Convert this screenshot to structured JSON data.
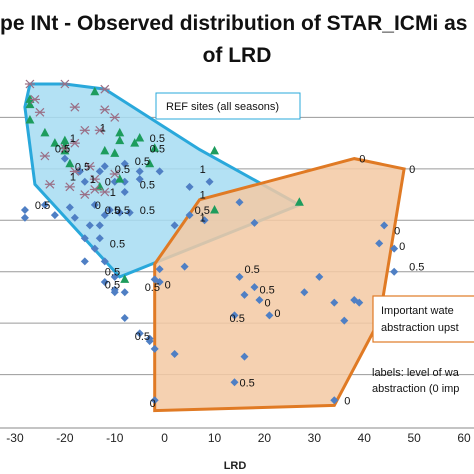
{
  "chart_data": {
    "type": "scatter",
    "title_line1": "pe INt - Observed distribution of STAR_ICMi as a functic",
    "title_line2": "of LRD",
    "xlabel": "LRD",
    "xlim": [
      -33,
      62
    ],
    "ylim": [
      0.0,
      1.4
    ],
    "x_ticks": [
      -30,
      -20,
      -10,
      0,
      10,
      20,
      30,
      40,
      50,
      60
    ],
    "grid_y": [
      0.2,
      0.4,
      0.6,
      0.8,
      1.0,
      1.2
    ],
    "grid": true,
    "colors": {
      "ref_fill": "#a6dcf2",
      "ref_stroke": "#29a8db",
      "abs_fill": "#f3c9a3",
      "abs_stroke": "#e07a24",
      "diamond": "#4f7fc4",
      "triangle": "#1d9c5d",
      "star": "#9a6f86"
    },
    "ref_region": {
      "label": "REF sites (all seasons)",
      "polygon": [
        [
          -27,
          1.33
        ],
        [
          -20,
          1.33
        ],
        [
          -12,
          1.31
        ],
        [
          7,
          1.075
        ],
        [
          27,
          0.86
        ],
        [
          -9,
          0.58
        ],
        [
          -26,
          0.94
        ],
        [
          -28,
          1.24
        ]
      ]
    },
    "abstraction_region": {
      "label_lines": [
        "Important wate",
        "abstraction upst"
      ],
      "polygon": [
        [
          -2,
          0.63
        ],
        [
          7,
          0.88
        ],
        [
          38,
          1.04
        ],
        [
          48,
          1.0
        ],
        [
          43,
          0.41
        ],
        [
          34,
          0.08
        ],
        [
          -2,
          0.06
        ]
      ]
    },
    "series": [
      {
        "marker": "diamond",
        "points": [
          [
            -28,
            0.84
          ],
          [
            -28,
            0.81
          ],
          [
            -22,
            0.82
          ],
          [
            -14,
            0.86
          ],
          [
            -11,
            0.84
          ],
          [
            -9,
            0.83
          ],
          [
            -13,
            0.99
          ],
          [
            -10,
            0.95
          ],
          [
            -13,
            0.78
          ],
          [
            -14,
            0.69
          ],
          [
            -12,
            0.64
          ],
          [
            -12,
            0.56
          ],
          [
            -16,
            0.64
          ],
          [
            -10,
            0.58
          ],
          [
            -10,
            0.52
          ],
          [
            -5,
            0.36
          ],
          [
            -10,
            0.53
          ],
          [
            -19,
            0.85
          ],
          [
            -5,
            0.96
          ],
          [
            -8,
            0.95
          ],
          [
            -8,
            0.91
          ],
          [
            -3,
            0.34
          ],
          [
            -2,
            0.3
          ],
          [
            -1,
            0.56
          ],
          [
            -1,
            0.61
          ],
          [
            4,
            0.62
          ],
          [
            -20,
            1.04
          ],
          [
            -17,
            0.99
          ],
          [
            -16,
            0.95
          ],
          [
            -12,
            1.01
          ],
          [
            -8,
            1.02
          ],
          [
            -5,
            0.99
          ],
          [
            -1,
            0.99
          ],
          [
            5,
            0.93
          ],
          [
            5,
            0.82
          ],
          [
            2,
            0.78
          ],
          [
            15,
            0.58
          ],
          [
            18,
            0.54
          ],
          [
            16,
            0.51
          ],
          [
            19,
            0.49
          ],
          [
            28,
            0.52
          ],
          [
            31,
            0.58
          ],
          [
            38,
            0.49
          ],
          [
            39,
            0.48
          ],
          [
            44,
            0.78
          ],
          [
            43,
            0.71
          ],
          [
            46,
            0.69
          ],
          [
            46,
            0.6
          ],
          [
            -16,
            0.73
          ],
          [
            -13,
            0.73
          ],
          [
            -12,
            0.82
          ],
          [
            -8,
            0.42
          ],
          [
            -2,
            0.1
          ],
          [
            14,
            0.17
          ],
          [
            34,
            0.1
          ],
          [
            36,
            0.41
          ],
          [
            34,
            0.48
          ],
          [
            8,
            0.8
          ],
          [
            18,
            0.79
          ],
          [
            21,
            0.43
          ],
          [
            14,
            0.43
          ],
          [
            -18,
            0.81
          ],
          [
            -15,
            0.78
          ],
          [
            -7,
            0.83
          ],
          [
            -3,
            0.33
          ],
          [
            -24,
            0.86
          ],
          [
            15,
            0.87
          ],
          [
            9,
            0.95
          ],
          [
            -8,
            0.52
          ],
          [
            16,
            0.27
          ],
          [
            2,
            0.28
          ],
          [
            -2,
            0.57
          ]
        ]
      },
      {
        "marker": "triangle",
        "points": [
          [
            -27,
            1.25
          ],
          [
            -27,
            1.27
          ],
          [
            -27,
            1.19
          ],
          [
            -24,
            1.14
          ],
          [
            -22,
            1.1
          ],
          [
            -20,
            1.07
          ],
          [
            -20,
            1.11
          ],
          [
            -20,
            1.09
          ],
          [
            -9,
            1.11
          ],
          [
            -10,
            1.06
          ],
          [
            -3,
            1.02
          ],
          [
            -6,
            1.1
          ],
          [
            -5,
            1.12
          ],
          [
            -2,
            1.08
          ],
          [
            -19,
            1.02
          ],
          [
            -12,
            1.07
          ],
          [
            -9,
            1.14
          ],
          [
            10,
            1.07
          ],
          [
            -13,
            0.93
          ],
          [
            -9,
            0.96
          ],
          [
            27,
            0.87
          ],
          [
            -8,
            0.57
          ],
          [
            10,
            0.84
          ],
          [
            -14,
            1.3
          ]
        ]
      },
      {
        "marker": "star",
        "points": [
          [
            -27,
            1.33
          ],
          [
            -20,
            1.33
          ],
          [
            -12,
            1.31
          ],
          [
            -26,
            1.27
          ],
          [
            -25,
            1.22
          ],
          [
            -18,
            1.24
          ],
          [
            -12,
            1.23
          ],
          [
            -10,
            1.2
          ],
          [
            -13,
            1.15
          ],
          [
            -16,
            1.15
          ],
          [
            -18,
            1.1
          ],
          [
            -20,
            1.08
          ],
          [
            -24,
            1.05
          ],
          [
            -15,
            1.01
          ],
          [
            -18,
            0.99
          ],
          [
            -14,
            0.96
          ],
          [
            -14,
            0.92
          ],
          [
            -23,
            0.94
          ],
          [
            -19,
            0.93
          ],
          [
            -12,
            0.91
          ],
          [
            -10,
            0.98
          ],
          [
            -16,
            0.9
          ]
        ]
      }
    ],
    "point_labels": [
      {
        "x": -22,
        "y": 1.08,
        "text": "0.5"
      },
      {
        "x": -19,
        "y": 1.12,
        "text": "1"
      },
      {
        "x": -13,
        "y": 1.16,
        "text": "1"
      },
      {
        "x": -3,
        "y": 1.12,
        "text": "0.5"
      },
      {
        "x": -3,
        "y": 1.08,
        "text": "0.5"
      },
      {
        "x": -10,
        "y": 1.0,
        "text": "0.5"
      },
      {
        "x": -6,
        "y": 1.03,
        "text": "0.5"
      },
      {
        "x": -18,
        "y": 1.01,
        "text": "0.5"
      },
      {
        "x": -19,
        "y": 0.97,
        "text": "1"
      },
      {
        "x": -15,
        "y": 0.96,
        "text": "1"
      },
      {
        "x": -12,
        "y": 0.95,
        "text": "0"
      },
      {
        "x": -11,
        "y": 0.91,
        "text": "1"
      },
      {
        "x": -5,
        "y": 0.94,
        "text": "0.5"
      },
      {
        "x": 7,
        "y": 1.0,
        "text": "1"
      },
      {
        "x": 7,
        "y": 0.9,
        "text": "1"
      },
      {
        "x": -26,
        "y": 0.86,
        "text": "0.5"
      },
      {
        "x": -14,
        "y": 0.86,
        "text": "0"
      },
      {
        "x": -12,
        "y": 0.84,
        "text": "0.5"
      },
      {
        "x": -10,
        "y": 0.84,
        "text": "0.5"
      },
      {
        "x": -5,
        "y": 0.84,
        "text": "0.5"
      },
      {
        "x": 6,
        "y": 0.84,
        "text": "0.5"
      },
      {
        "x": 7,
        "y": 0.81,
        "text": "1"
      },
      {
        "x": -11,
        "y": 0.71,
        "text": "0.5"
      },
      {
        "x": -12,
        "y": 0.6,
        "text": "0.5"
      },
      {
        "x": -12,
        "y": 0.55,
        "text": "0.5"
      },
      {
        "x": -4,
        "y": 0.54,
        "text": "0.5"
      },
      {
        "x": 0,
        "y": 0.55,
        "text": "0"
      },
      {
        "x": -6,
        "y": 0.35,
        "text": "0.5"
      },
      {
        "x": -3,
        "y": 0.09,
        "text": "0"
      },
      {
        "x": 16,
        "y": 0.61,
        "text": "0.5"
      },
      {
        "x": 19,
        "y": 0.53,
        "text": "0.5"
      },
      {
        "x": 20,
        "y": 0.48,
        "text": "0"
      },
      {
        "x": 13,
        "y": 0.42,
        "text": "0.5"
      },
      {
        "x": 22,
        "y": 0.44,
        "text": "0"
      },
      {
        "x": 15,
        "y": 0.17,
        "text": "0.5"
      },
      {
        "x": 36,
        "y": 0.1,
        "text": "0"
      },
      {
        "x": 39,
        "y": 1.04,
        "text": "0"
      },
      {
        "x": 49,
        "y": 1.0,
        "text": "0"
      },
      {
        "x": 46,
        "y": 0.76,
        "text": "0"
      },
      {
        "x": 47,
        "y": 0.7,
        "text": "0"
      },
      {
        "x": 49,
        "y": 0.62,
        "text": "0.5"
      }
    ],
    "annotations": {
      "labels_line1": "labels: level of wa",
      "labels_line2": "abstraction (0 imp"
    }
  }
}
